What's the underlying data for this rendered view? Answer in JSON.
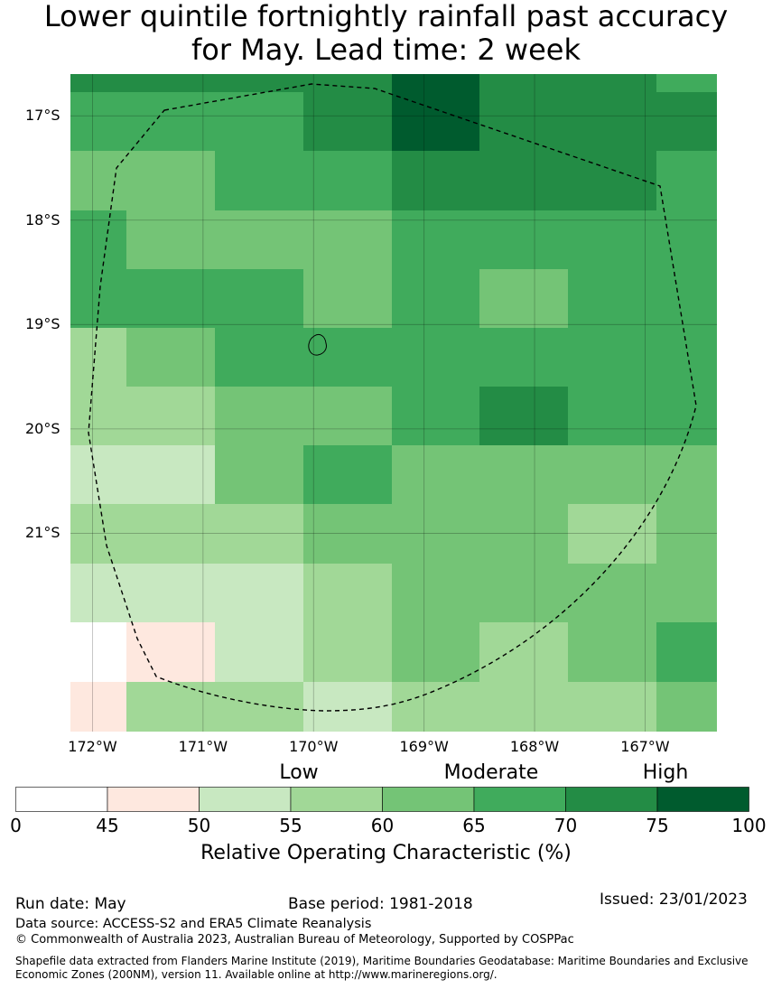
{
  "title": {
    "line1": "Lower quintile fortnightly rainfall past accuracy",
    "line2": "for May. Lead time: 2 week"
  },
  "map": {
    "lon_range": [
      -172.2,
      -166.35
    ],
    "lat_range": [
      -22.9,
      -16.6
    ],
    "lat_ticks": [
      {
        "value": -17,
        "label": "17°S"
      },
      {
        "value": -18,
        "label": "18°S"
      },
      {
        "value": -19,
        "label": "19°S"
      },
      {
        "value": -20,
        "label": "20°S"
      },
      {
        "value": -21,
        "label": "21°S"
      }
    ],
    "lon_ticks": [
      {
        "value": -172,
        "label": "172°W"
      },
      {
        "value": -171,
        "label": "171°W"
      },
      {
        "value": -170,
        "label": "170°W"
      },
      {
        "value": -169,
        "label": "169°W"
      },
      {
        "value": -168,
        "label": "168°W"
      },
      {
        "value": -167,
        "label": "167°W"
      }
    ],
    "grid_rows": [
      [
        70,
        70,
        70,
        72,
        100,
        70,
        70,
        65
      ],
      [
        65,
        65,
        65,
        72,
        100,
        70,
        70,
        70
      ],
      [
        60,
        60,
        65,
        65,
        70,
        70,
        70,
        65
      ],
      [
        65,
        60,
        60,
        60,
        65,
        65,
        65,
        65
      ],
      [
        65,
        65,
        65,
        60,
        65,
        60,
        65,
        65
      ],
      [
        55,
        60,
        65,
        65,
        65,
        65,
        65,
        65
      ],
      [
        55,
        55,
        60,
        60,
        65,
        70,
        65,
        65
      ],
      [
        50,
        50,
        60,
        65,
        60,
        60,
        60,
        60
      ],
      [
        55,
        55,
        55,
        60,
        60,
        60,
        55,
        60
      ],
      [
        50,
        50,
        50,
        55,
        60,
        60,
        60,
        60
      ],
      [
        0,
        45,
        50,
        55,
        60,
        55,
        60,
        65
      ],
      [
        45,
        55,
        55,
        50,
        55,
        55,
        55,
        60
      ]
    ]
  },
  "colorbar": {
    "bins": [
      {
        "from": 0,
        "to": 45,
        "color": "#ffffff"
      },
      {
        "from": 45,
        "to": 50,
        "color": "#fee8df"
      },
      {
        "from": 50,
        "to": 55,
        "color": "#c8e8c1"
      },
      {
        "from": 55,
        "to": 60,
        "color": "#a1d897"
      },
      {
        "from": 60,
        "to": 65,
        "color": "#74c476"
      },
      {
        "from": 65,
        "to": 70,
        "color": "#40ab5c"
      },
      {
        "from": 70,
        "to": 75,
        "color": "#238c45"
      },
      {
        "from": 75,
        "to": 100,
        "color": "#005b2e"
      }
    ],
    "ticks": [
      "0",
      "45",
      "50",
      "55",
      "60",
      "65",
      "70",
      "75",
      "100"
    ],
    "categories": {
      "low": "Low",
      "moderate": "Moderate",
      "high": "High"
    },
    "title": "Relative Operating Characteristic (%)"
  },
  "footer": {
    "run_date": "Run date: May",
    "base_period": "Base period: 1981-2018",
    "issued": "Issued: 23/01/2023",
    "data_source": "Data source: ACCESS-S2 and ERA5 Climate Reanalysis",
    "copyright": "© Commonwealth of Australia 2023, Australian Bureau of Meteorology, Supported by COSPPac",
    "shapefile_line1": "Shapefile data extracted from Flanders Marine Institute (2019), Maritime Boundaries Geodatabase: Maritime Boundaries and Exclusive",
    "shapefile_line2": "Economic Zones (200NM), version 11. Available online at http://www.marineregions.org/."
  }
}
